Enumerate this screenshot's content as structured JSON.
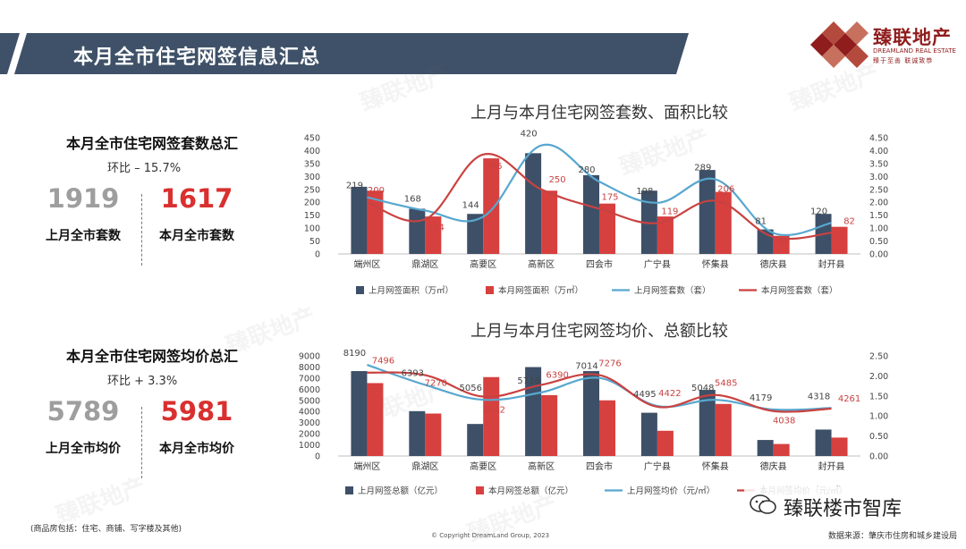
{
  "page": {
    "title": "本月全市住宅网签信息汇总",
    "watermark": "臻联地产"
  },
  "logo": {
    "name_cn": "臻联地产",
    "name_en": "DREAMLAND REAL ESTATE",
    "slogan": "臻于至善 联诚致恭"
  },
  "summary_count": {
    "title": "本月全市住宅网签套数总汇",
    "mom": "环比 – 15.7%",
    "last_value": "1919",
    "last_label": "上月全市套数",
    "this_value": "1617",
    "this_label": "本月全市套数"
  },
  "summary_price": {
    "title": "本月全市住宅网签均价总汇",
    "mom": "环比  + 3.3%",
    "last_value": "5789",
    "last_label": "上月全市均价",
    "this_value": "5981",
    "this_label": "本月全市均价"
  },
  "colors": {
    "navy": "#3d5068",
    "red": "#d6403f",
    "blue_line": "#58a7cf",
    "red_line": "#c94240",
    "banner": "#3e5168",
    "logo_red": "#8f1d1d"
  },
  "chart_data": [
    {
      "type": "bar",
      "title": "上月与本月住宅网签套数、面积比较",
      "categories": [
        "端州区",
        "鼎湖区",
        "高要区",
        "高新区",
        "四会市",
        "广宁县",
        "怀集县",
        "德庆县",
        "封开县"
      ],
      "ylim_left": [
        0,
        450
      ],
      "yticks_left": [
        "0",
        "50",
        "100",
        "150",
        "200",
        "250",
        "300",
        "350",
        "400",
        "450"
      ],
      "ylim_right": [
        0,
        4.5
      ],
      "yticks_right": [
        "0.00",
        "0.50",
        "1.00",
        "1.50",
        "2.00",
        "2.50",
        "3.00",
        "3.50",
        "4.00",
        "4.50"
      ],
      "series": [
        {
          "name": "上月网签面积（万㎡）",
          "kind": "bar",
          "axis": "right",
          "color": "#3d5068",
          "values": [
            2.6,
            1.75,
            1.55,
            3.9,
            3.05,
            2.45,
            3.25,
            0.95,
            1.55
          ]
        },
        {
          "name": "本月网签面积（万㎡）",
          "kind": "bar",
          "axis": "right",
          "color": "#d6403f",
          "values": [
            2.45,
            1.45,
            3.7,
            2.45,
            1.95,
            1.45,
            2.4,
            0.7,
            1.05
          ]
        },
        {
          "name": "上月网签套数（套）",
          "kind": "line",
          "axis": "left",
          "color": "#58a7cf",
          "values": [
            219,
            168,
            144,
            420,
            280,
            198,
            289,
            81,
            120
          ],
          "labels": [
            "219",
            "168",
            "144",
            "420",
            "280",
            "198",
            "289",
            "81",
            "120"
          ]
        },
        {
          "name": "本月网签套数（套）",
          "kind": "line",
          "axis": "left",
          "color": "#c94240",
          "values": [
            200,
            134,
            385,
            250,
            175,
            119,
            206,
            66,
            82
          ],
          "labels": [
            "200",
            "134",
            "385",
            "250",
            "175",
            "119",
            "206",
            "66",
            "82"
          ]
        }
      ]
    },
    {
      "type": "bar",
      "title": "上月与本月住宅网签均价、总额比较",
      "categories": [
        "端州区",
        "鼎湖区",
        "高要区",
        "高新区",
        "四会市",
        "广宁县",
        "怀集县",
        "德庆县",
        "封开县"
      ],
      "ylim_left": [
        0,
        9000
      ],
      "yticks_left": [
        "0",
        "1000",
        "2000",
        "3000",
        "4000",
        "5000",
        "6000",
        "7000",
        "8000",
        "9000"
      ],
      "ylim_right": [
        0,
        2.5
      ],
      "yticks_right": [
        "0.00",
        "0.50",
        "1.00",
        "1.50",
        "2.00",
        "2.50"
      ],
      "series": [
        {
          "name": "上月网签总额（亿元）",
          "kind": "bar",
          "axis": "right",
          "color": "#3d5068",
          "values": [
            2.12,
            1.12,
            0.8,
            2.22,
            2.12,
            1.08,
            1.65,
            0.4,
            0.66
          ]
        },
        {
          "name": "本月网签总额（亿元）",
          "kind": "bar",
          "axis": "right",
          "color": "#d6403f",
          "values": [
            1.82,
            1.06,
            1.97,
            1.52,
            1.39,
            0.63,
            1.3,
            0.3,
            0.46
          ]
        },
        {
          "name": "上月网签均价（元/㎡）",
          "kind": "line",
          "axis": "left",
          "color": "#58a7cf",
          "values": [
            8190,
            6393,
            5056,
            5716,
            7014,
            4495,
            5048,
            4179,
            4318
          ],
          "labels": [
            "8190",
            "6393",
            "5056",
            "5716",
            "7014",
            "4495",
            "5048",
            "4179",
            "4318"
          ]
        },
        {
          "name": "本月网签均价（元/㎡）",
          "kind": "line",
          "axis": "left",
          "color": "#c94240",
          "values": [
            7496,
            7270,
            5342,
            6390,
            7276,
            4422,
            5485,
            4038,
            4261
          ],
          "labels": [
            "7496",
            "7270",
            "5342",
            "6390",
            "7276",
            "4422",
            "5485",
            "4038",
            "4261"
          ]
        }
      ]
    }
  ],
  "footer": {
    "note": "(商品房包括：住宅、商铺、写字楼及其他)",
    "copyright": "© Copyright  DreamLand Group, 2023",
    "source": "数据来源：肇庆市住房和城乡建设局",
    "badge": "臻联楼市智库"
  }
}
